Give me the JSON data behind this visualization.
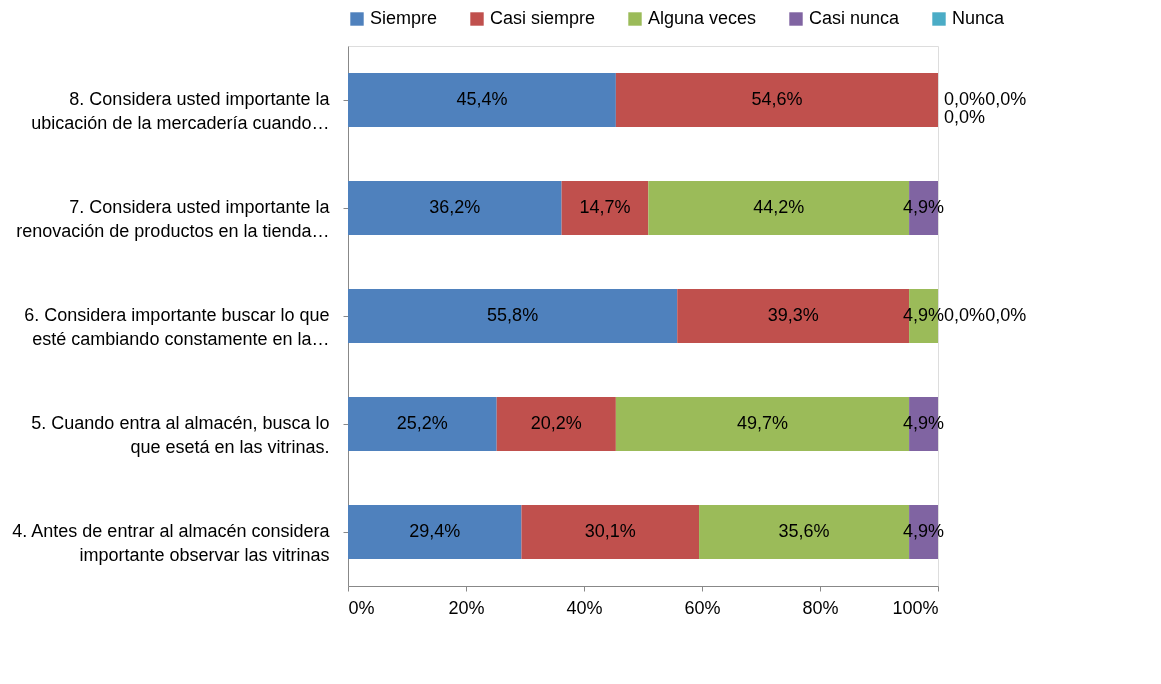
{
  "chart_data": {
    "type": "bar",
    "orientation": "horizontal",
    "stacked": true,
    "categories": [
      "8. Considera usted importante la ubicación de la mercadería cuando…",
      "7. Considera usted importante la renovación de productos en la tienda…",
      "6. Considera importante buscar lo que esté cambiando constamente en la…",
      "5. Cuando entra al almacén,  busca lo que esetá en las vitrinas.",
      "4. Antes de entrar al almacén considera importante observar las vitrinas"
    ],
    "series": [
      {
        "name": "Siempre",
        "color": "#4f81bd",
        "values": [
          45.4,
          36.2,
          55.8,
          25.2,
          29.4
        ],
        "value_labels": [
          "45,4%",
          "36,2%",
          "55,8%",
          "25,2%",
          "29,4%"
        ]
      },
      {
        "name": "Casi siempre",
        "color": "#c0504d",
        "values": [
          54.6,
          14.7,
          39.3,
          20.2,
          30.1
        ],
        "value_labels": [
          "54,6%",
          "14,7%",
          "39,3%",
          "20,2%",
          "30,1%"
        ]
      },
      {
        "name": "Alguna veces",
        "color": "#9bbb59",
        "values": [
          0.0,
          44.2,
          4.9,
          49.7,
          35.6
        ],
        "value_labels": [
          "0,0%",
          "44,2%",
          "4,9%",
          "49,7%",
          "35,6%"
        ]
      },
      {
        "name": "Casi nunca",
        "color": "#8064a2",
        "values": [
          0.0,
          4.9,
          0.0,
          4.9,
          4.9
        ],
        "value_labels": [
          "0,0%",
          "4,9%",
          "0,0%",
          "4,9%",
          "4,9%"
        ]
      },
      {
        "name": "Nunca",
        "color": "#4bacc6",
        "values": [
          0.0,
          0.0,
          0.0,
          0.0,
          0.0
        ],
        "value_labels": [
          "0,0%",
          null,
          "0,0%",
          null,
          null
        ]
      }
    ],
    "xlim": [
      0,
      100
    ],
    "xticks": [
      {
        "value": 0,
        "label": "0%"
      },
      {
        "value": 20,
        "label": "20%"
      },
      {
        "value": 40,
        "label": "40%"
      },
      {
        "value": 60,
        "label": "60%"
      },
      {
        "value": 80,
        "label": "80%"
      },
      {
        "value": 100,
        "label": "100%"
      }
    ],
    "grid": false,
    "legend": "top"
  }
}
